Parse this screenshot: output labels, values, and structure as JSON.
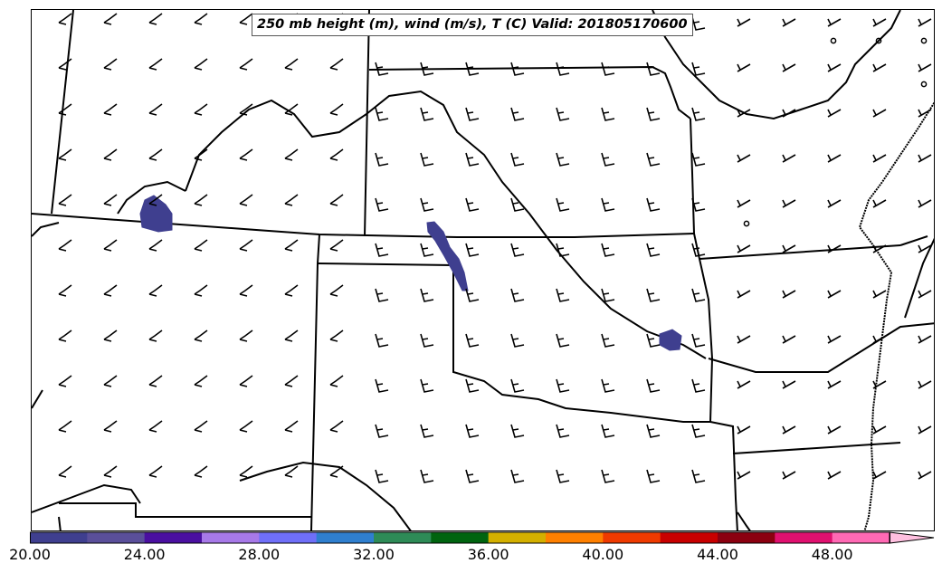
{
  "title": "250 mb height (m), wind (m/s), T (C) Valid: 201805170600",
  "colorbar": {
    "colors": [
      "#3f3f8f",
      "#5a4f9a",
      "#4a0fa0",
      "#a779e8",
      "#6f6ff8",
      "#2f7fcf",
      "#2e8b57",
      "#00640f",
      "#d4b000",
      "#ff8000",
      "#ef3a00",
      "#c80000",
      "#8b0010",
      "#e0106f",
      "#ff69b4",
      "#ffc0e0"
    ],
    "tick_labels": [
      "20.00",
      "24.00",
      "28.00",
      "32.00",
      "36.00",
      "40.00",
      "44.00",
      "48.00"
    ],
    "tick_values": [
      20,
      24,
      28,
      32,
      36,
      40,
      44,
      48
    ],
    "range": [
      20,
      51.5
    ],
    "extend": "max"
  },
  "map": {
    "wind_barb_color": "#000000",
    "border_color": "#000000",
    "shading_color": "#3f3f8f",
    "shaded_areas": [
      "northwest blob",
      "central streak",
      "southeast blob"
    ]
  }
}
